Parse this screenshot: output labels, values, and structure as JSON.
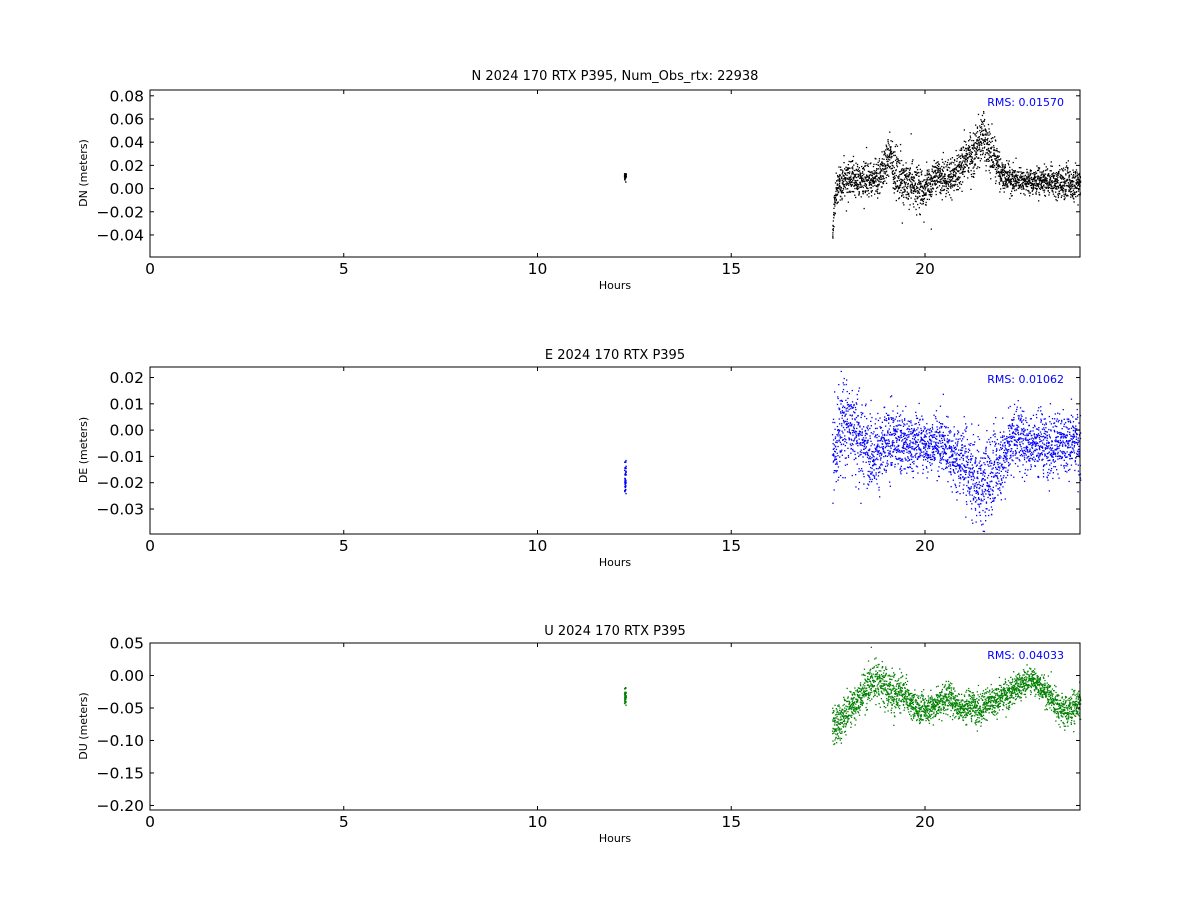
{
  "chart_data": [
    {
      "type": "scatter",
      "title": "N 2024 170 RTX  P395, Num_Obs_rtx: 22938",
      "xlabel": "Hours",
      "ylabel": "DN (meters)",
      "xlim": [
        0,
        24
      ],
      "ylim": [
        -0.059,
        0.085
      ],
      "xticks": [
        0,
        5,
        10,
        15,
        20
      ],
      "yticks": [
        -0.04,
        -0.02,
        0.0,
        0.02,
        0.04,
        0.06,
        0.08
      ],
      "ytick_decimals": 2,
      "rms_label": "RMS:  0.01570",
      "color": "#000000",
      "series": [
        {
          "x": [
            12.25,
            17.6,
            17.62,
            17.65,
            17.7,
            17.75,
            17.8,
            17.9,
            18.0,
            18.2,
            18.4,
            18.6,
            18.8,
            19.0,
            19.1,
            19.2,
            19.4,
            19.6,
            19.8,
            20.0,
            20.2,
            20.4,
            20.6,
            20.8,
            21.0,
            21.2,
            21.4,
            21.5,
            21.6,
            21.8,
            22.0,
            22.2,
            22.4,
            22.6,
            22.8,
            23.0,
            23.2,
            23.4,
            23.6,
            23.8,
            24.0
          ],
          "y": [
            0.011,
            -0.048,
            -0.03,
            -0.01,
            0.0,
            0.003,
            0.006,
            0.008,
            0.01,
            0.009,
            0.007,
            0.006,
            0.01,
            0.024,
            0.03,
            0.016,
            0.008,
            0.005,
            0.002,
            0.0,
            0.01,
            0.012,
            0.01,
            0.012,
            0.025,
            0.03,
            0.04,
            0.048,
            0.035,
            0.025,
            0.012,
            0.008,
            0.008,
            0.007,
            0.006,
            0.007,
            0.006,
            0.005,
            0.006,
            0.005,
            0.008
          ],
          "spread": [
            0.003,
            0.007,
            0.01,
            0.01,
            0.012,
            0.013,
            0.013,
            0.013,
            0.013,
            0.013,
            0.013,
            0.014,
            0.016,
            0.016,
            0.015,
            0.017,
            0.019,
            0.019,
            0.017,
            0.015,
            0.013,
            0.012,
            0.014,
            0.016,
            0.016,
            0.017,
            0.019,
            0.02,
            0.019,
            0.017,
            0.013,
            0.011,
            0.009,
            0.009,
            0.01,
            0.01,
            0.011,
            0.012,
            0.013,
            0.013,
            0.014
          ]
        }
      ]
    },
    {
      "type": "scatter",
      "title": "E 2024 170 RTX  P395",
      "xlabel": "Hours",
      "ylabel": "DE (meters)",
      "xlim": [
        0,
        24
      ],
      "ylim": [
        -0.0395,
        0.024
      ],
      "xticks": [
        0,
        5,
        10,
        15,
        20
      ],
      "yticks": [
        -0.03,
        -0.02,
        -0.01,
        0.0,
        0.01,
        0.02
      ],
      "ytick_decimals": 2,
      "rms_label": "RMS:  0.01062",
      "color": "#0000ff",
      "series": [
        {
          "x": [
            12.25,
            17.6,
            17.7,
            17.8,
            18.0,
            18.2,
            18.4,
            18.6,
            18.8,
            19.0,
            19.2,
            19.4,
            19.6,
            19.8,
            20.0,
            20.2,
            20.4,
            20.6,
            20.8,
            21.0,
            21.2,
            21.4,
            21.6,
            21.8,
            22.0,
            22.2,
            22.4,
            22.6,
            22.8,
            23.0,
            23.2,
            23.4,
            23.6,
            23.8,
            24.0
          ],
          "y": [
            -0.018,
            -0.01,
            -0.005,
            0.002,
            0.004,
            0.0,
            -0.004,
            -0.008,
            -0.008,
            -0.005,
            -0.003,
            -0.004,
            -0.006,
            -0.004,
            -0.006,
            -0.005,
            -0.005,
            -0.007,
            -0.012,
            -0.011,
            -0.018,
            -0.022,
            -0.018,
            -0.014,
            -0.01,
            -0.004,
            -0.001,
            -0.006,
            -0.004,
            -0.005,
            -0.006,
            -0.004,
            -0.006,
            -0.004,
            -0.005
          ],
          "spread": [
            0.006,
            0.014,
            0.015,
            0.015,
            0.015,
            0.014,
            0.013,
            0.012,
            0.011,
            0.011,
            0.01,
            0.01,
            0.01,
            0.01,
            0.009,
            0.009,
            0.01,
            0.01,
            0.011,
            0.012,
            0.014,
            0.015,
            0.015,
            0.013,
            0.012,
            0.011,
            0.011,
            0.01,
            0.01,
            0.01,
            0.01,
            0.01,
            0.01,
            0.01,
            0.011
          ]
        }
      ]
    },
    {
      "type": "scatter",
      "title": "U 2024 170 RTX  P395",
      "xlabel": "Hours",
      "ylabel": "DU (meters)",
      "xlim": [
        0,
        24
      ],
      "ylim": [
        -0.207,
        0.05
      ],
      "xticks": [
        0,
        5,
        10,
        15,
        20
      ],
      "yticks": [
        -0.2,
        -0.15,
        -0.1,
        -0.05,
        0.0,
        0.05
      ],
      "ytick_decimals": 2,
      "rms_label": "RMS:  0.04033",
      "color": "#008000",
      "series": [
        {
          "x": [
            12.25,
            17.6,
            17.7,
            17.8,
            18.0,
            18.2,
            18.4,
            18.6,
            18.8,
            19.0,
            19.2,
            19.4,
            19.6,
            19.8,
            20.0,
            20.2,
            20.4,
            20.6,
            20.8,
            21.0,
            21.2,
            21.4,
            21.6,
            21.8,
            22.0,
            22.2,
            22.4,
            22.6,
            22.8,
            23.0,
            23.2,
            23.4,
            23.6,
            23.8,
            24.0
          ],
          "y": [
            -0.03,
            -0.07,
            -0.075,
            -0.07,
            -0.055,
            -0.04,
            -0.025,
            -0.01,
            -0.005,
            -0.02,
            -0.03,
            -0.025,
            -0.04,
            -0.05,
            -0.05,
            -0.045,
            -0.04,
            -0.03,
            -0.045,
            -0.05,
            -0.045,
            -0.05,
            -0.04,
            -0.04,
            -0.03,
            -0.025,
            -0.015,
            -0.01,
            -0.005,
            -0.02,
            -0.03,
            -0.045,
            -0.055,
            -0.05,
            -0.04
          ],
          "spread": [
            0.012,
            0.03,
            0.03,
            0.028,
            0.025,
            0.025,
            0.025,
            0.028,
            0.03,
            0.03,
            0.028,
            0.025,
            0.02,
            0.02,
            0.02,
            0.02,
            0.022,
            0.022,
            0.02,
            0.02,
            0.02,
            0.022,
            0.02,
            0.02,
            0.02,
            0.02,
            0.02,
            0.018,
            0.018,
            0.018,
            0.02,
            0.022,
            0.022,
            0.022,
            0.022
          ]
        }
      ]
    }
  ]
}
